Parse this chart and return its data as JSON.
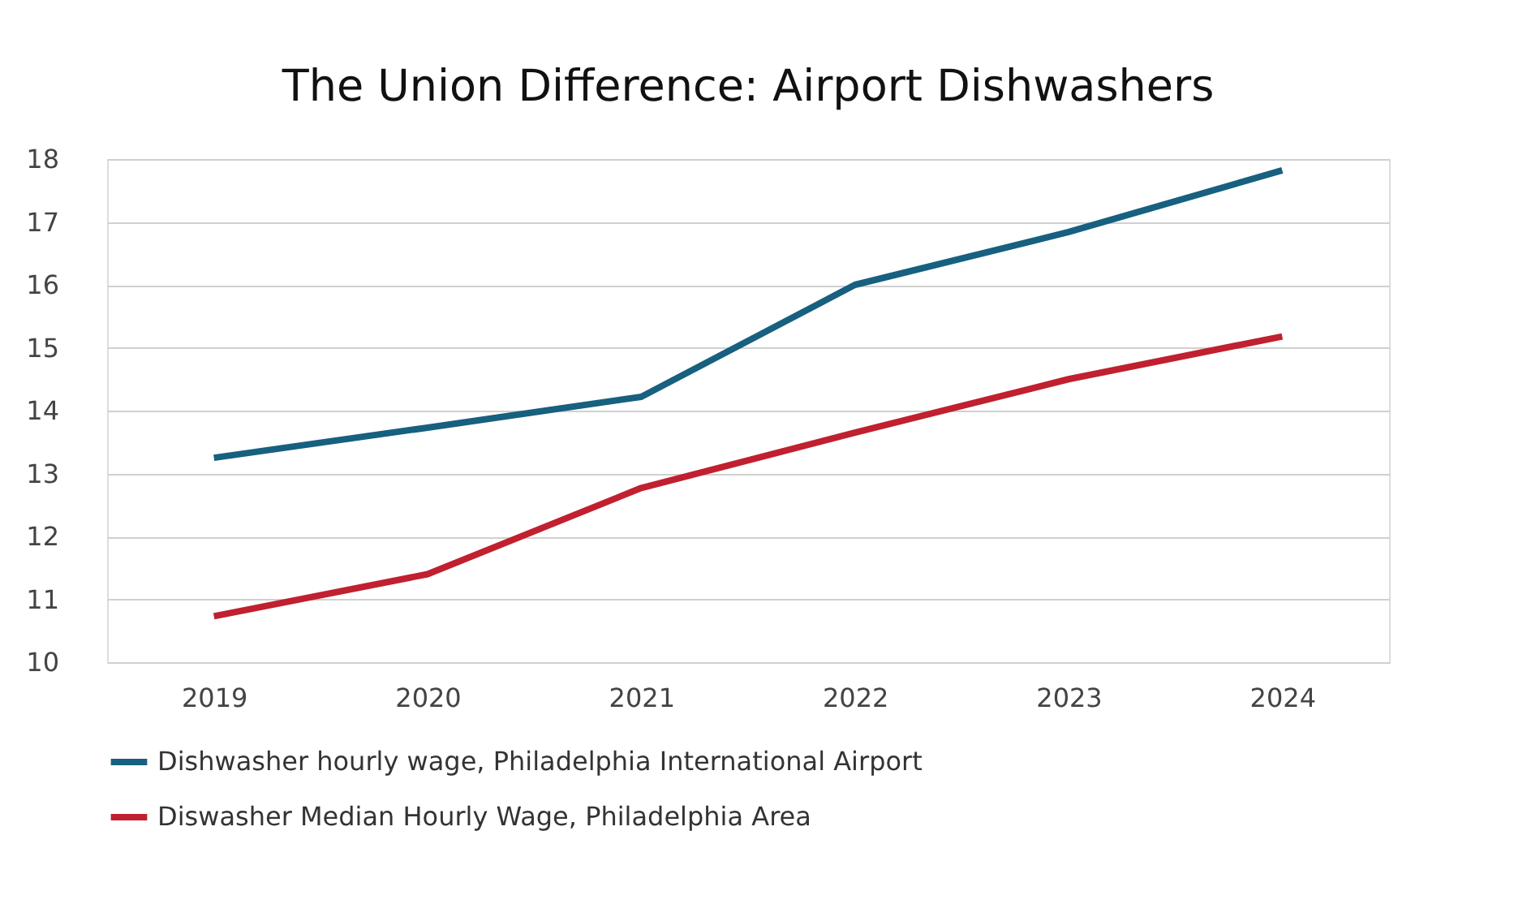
{
  "chart_data": {
    "type": "line",
    "title": "The Union Difference: Airport Dishwashers",
    "categories": [
      "2019",
      "2020",
      "2021",
      "2022",
      "2023",
      "2024"
    ],
    "series": [
      {
        "name": "Dishwasher hourly wage, Philadelphia International Airport",
        "color": "#17607f",
        "values": [
          13.25,
          13.73,
          14.22,
          16.0,
          16.84,
          17.82
        ]
      },
      {
        "name": "Diswasher Median Hourly Wage, Philadelphia Area",
        "color": "#c0202f",
        "values": [
          10.73,
          11.4,
          12.77,
          13.65,
          14.5,
          15.18
        ]
      }
    ],
    "ylim": [
      10,
      18
    ],
    "yticks": [
      10,
      11,
      12,
      13,
      14,
      15,
      16,
      17,
      18
    ],
    "grid": "y",
    "legend": "bottom",
    "marker": "none",
    "line_style": "solid"
  }
}
